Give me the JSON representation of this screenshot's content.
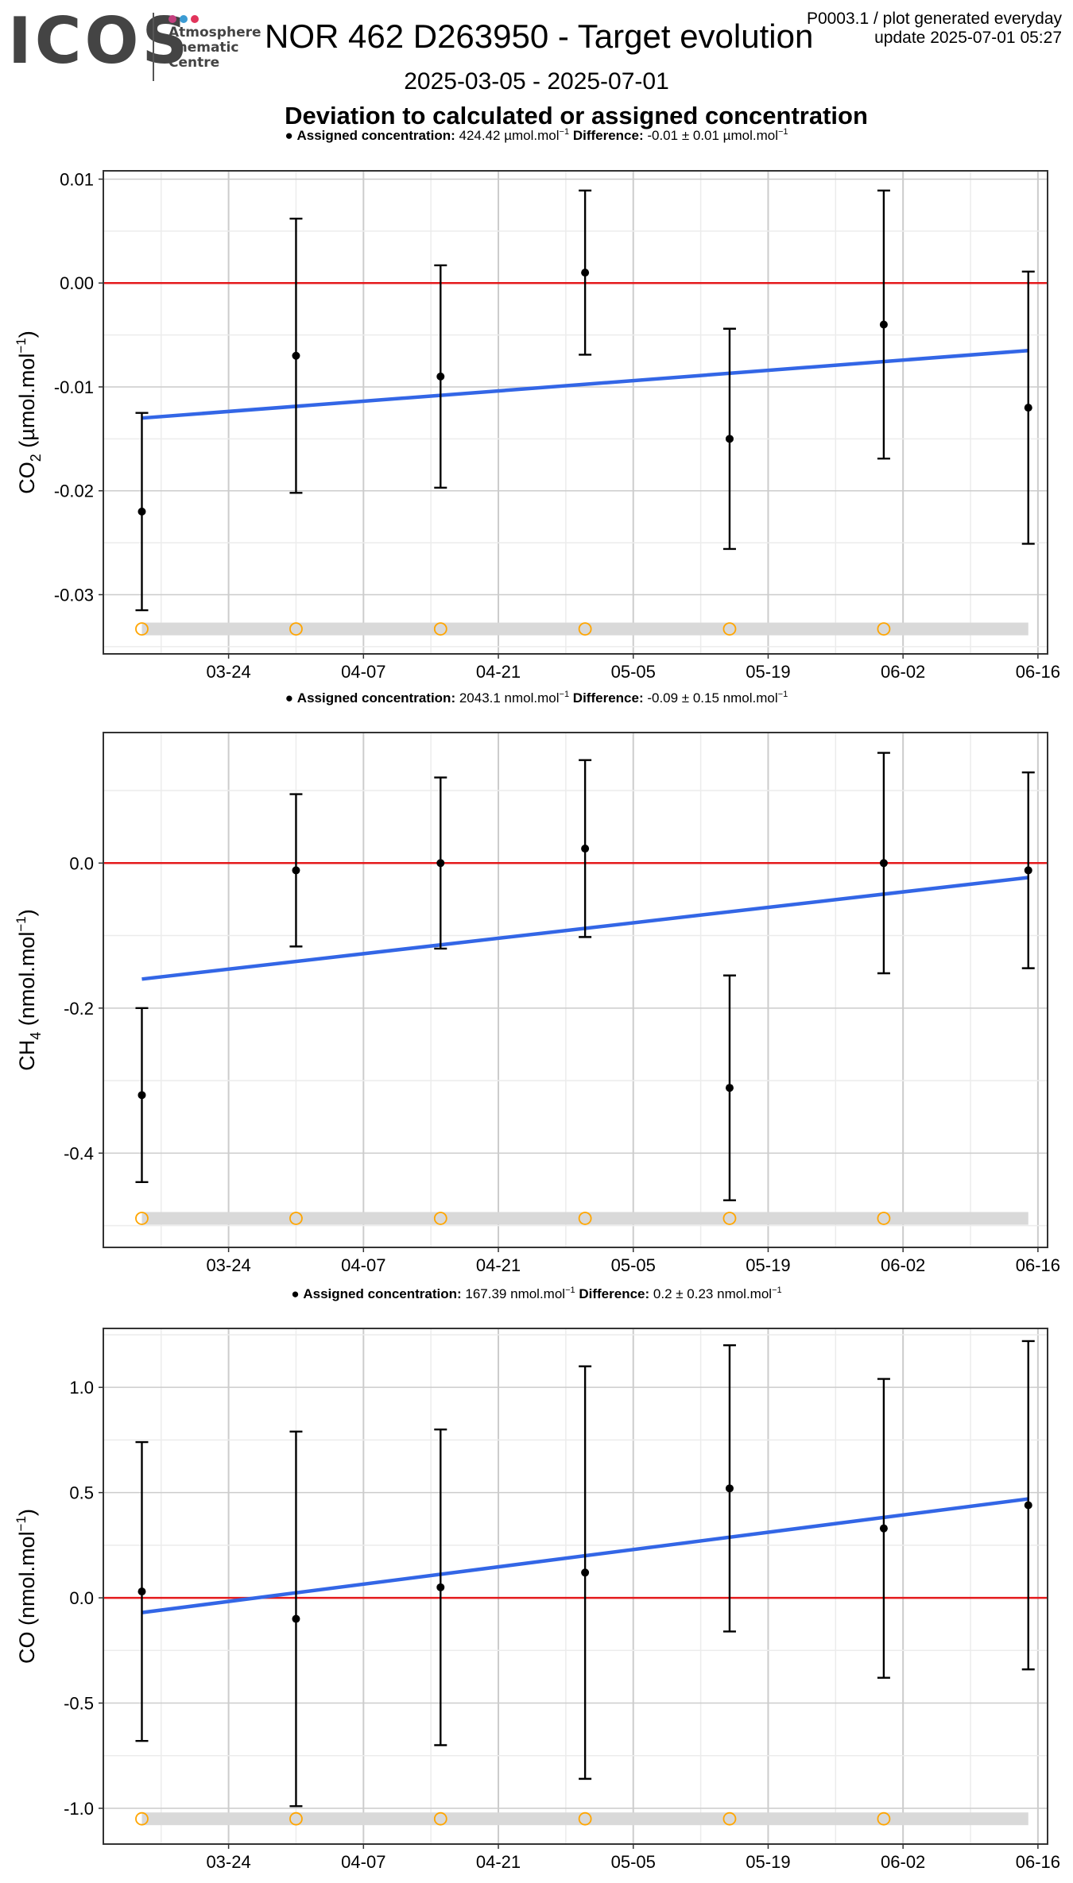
{
  "header": {
    "logo_text": "ICOS",
    "logo_subtitle": [
      "Atmosphere",
      "Thematic",
      "Centre"
    ],
    "logo_dot_colors": [
      "#c33f7e",
      "#3b9bd3",
      "#e1345b"
    ],
    "title": "NOR 462 D263950 - Target evolution",
    "plot_id": "P0003.1 / plot generated everyday",
    "update": "update  2025-07-01 05:27",
    "date_range": "2025-03-05 - 2025-07-01",
    "subtitle": "Deviation to calculated or assigned concentration"
  },
  "colors": {
    "zero_line": "#e41a1c",
    "trend_line": "#3366e6",
    "points": "#000000",
    "flag_circles": "#ffa500",
    "flag_band": "#d9d9d9",
    "grid_major": "#cccccc",
    "grid_minor": "#ececec"
  },
  "chart_data": [
    {
      "type": "scatter",
      "gas": "CO2",
      "ylabel_species": "CO",
      "ylabel_sub": "2",
      "ylabel_unit": "µmol.mol",
      "legend_label": "Assigned concentration:",
      "assigned_value": "424.42 µmol.mol",
      "difference_label": "Difference:",
      "difference_value": "-0.01 ± 0.01 µmol.mol",
      "x_ticks": [
        "03-24",
        "04-07",
        "04-21",
        "05-05",
        "05-19",
        "06-02",
        "06-16"
      ],
      "y_ticks": [
        0.01,
        0.0,
        -0.01,
        -0.02,
        -0.03
      ],
      "y_tick_labels": [
        "0.01",
        "0.00",
        "-0.01",
        "-0.02",
        "-0.03"
      ],
      "ylim": [
        -0.0357,
        0.0108
      ],
      "points": [
        {
          "date": "2025-03-15",
          "y": -0.022,
          "err": 0.0095
        },
        {
          "date": "2025-03-31",
          "y": -0.007,
          "err": 0.0132
        },
        {
          "date": "2025-04-15",
          "y": -0.009,
          "err": 0.0107
        },
        {
          "date": "2025-04-30",
          "y": 0.001,
          "err": 0.0079
        },
        {
          "date": "2025-05-15",
          "y": -0.015,
          "err": 0.0106
        },
        {
          "date": "2025-05-31",
          "y": -0.004,
          "err": 0.0129
        },
        {
          "date": "2025-06-15",
          "y": -0.012,
          "err": 0.0131
        }
      ],
      "trend": [
        {
          "date": "2025-03-15",
          "y": -0.013
        },
        {
          "date": "2025-06-15",
          "y": -0.0065
        }
      ],
      "flag_dates": [
        "2025-03-15",
        "2025-03-31",
        "2025-04-15",
        "2025-04-30",
        "2025-05-15",
        "2025-05-31"
      ],
      "flag_y": -0.0333
    },
    {
      "type": "scatter",
      "gas": "CH4",
      "ylabel_species": "CH",
      "ylabel_sub": "4",
      "ylabel_unit": "nmol.mol",
      "legend_label": "Assigned concentration:",
      "assigned_value": "2043.1 nmol.mol",
      "difference_label": "Difference:",
      "difference_value": "-0.09 ± 0.15 nmol.mol",
      "x_ticks": [
        "03-24",
        "04-07",
        "04-21",
        "05-05",
        "05-19",
        "06-02",
        "06-16"
      ],
      "y_ticks": [
        0.0,
        -0.2,
        -0.4
      ],
      "y_tick_labels": [
        "0.0",
        "-0.2",
        "-0.4"
      ],
      "ylim": [
        -0.53,
        0.18
      ],
      "points": [
        {
          "date": "2025-03-15",
          "y": -0.32,
          "err": 0.12
        },
        {
          "date": "2025-03-31",
          "y": -0.01,
          "err": 0.105
        },
        {
          "date": "2025-04-15",
          "y": 0.0,
          "err": 0.118
        },
        {
          "date": "2025-04-30",
          "y": 0.02,
          "err": 0.122
        },
        {
          "date": "2025-05-15",
          "y": -0.31,
          "err": 0.155
        },
        {
          "date": "2025-05-31",
          "y": 0.0,
          "err": 0.152
        },
        {
          "date": "2025-06-15",
          "y": -0.01,
          "err": 0.135
        }
      ],
      "trend": [
        {
          "date": "2025-03-15",
          "y": -0.16
        },
        {
          "date": "2025-06-15",
          "y": -0.02
        }
      ],
      "flag_dates": [
        "2025-03-15",
        "2025-03-31",
        "2025-04-15",
        "2025-04-30",
        "2025-05-15",
        "2025-05-31"
      ],
      "flag_y": -0.49
    },
    {
      "type": "scatter",
      "gas": "CO",
      "ylabel_species": "CO",
      "ylabel_sub": "",
      "ylabel_unit": "nmol.mol",
      "legend_label": "Assigned concentration:",
      "assigned_value": "167.39 nmol.mol",
      "difference_label": "Difference:",
      "difference_value": "0.2 ± 0.23 nmol.mol",
      "x_ticks": [
        "03-24",
        "04-07",
        "04-21",
        "05-05",
        "05-19",
        "06-02",
        "06-16"
      ],
      "y_ticks": [
        1.0,
        0.5,
        0.0,
        -0.5,
        -1.0
      ],
      "y_tick_labels": [
        "1.0",
        "0.5",
        "0.0",
        "-0.5",
        "-1.0"
      ],
      "ylim": [
        -1.17,
        1.28
      ],
      "points": [
        {
          "date": "2025-03-15",
          "y": 0.03,
          "err": 0.71
        },
        {
          "date": "2025-03-31",
          "y": -0.1,
          "err": 0.89
        },
        {
          "date": "2025-04-15",
          "y": 0.05,
          "err": 0.75
        },
        {
          "date": "2025-04-30",
          "y": 0.12,
          "err": 0.98
        },
        {
          "date": "2025-05-15",
          "y": 0.52,
          "err": 0.68
        },
        {
          "date": "2025-05-31",
          "y": 0.33,
          "err": 0.71
        },
        {
          "date": "2025-06-15",
          "y": 0.44,
          "err": 0.78
        }
      ],
      "trend": [
        {
          "date": "2025-03-15",
          "y": -0.07
        },
        {
          "date": "2025-06-15",
          "y": 0.47
        }
      ],
      "flag_dates": [
        "2025-03-15",
        "2025-03-31",
        "2025-04-15",
        "2025-04-30",
        "2025-05-15",
        "2025-05-31"
      ],
      "flag_y": -1.05
    }
  ]
}
